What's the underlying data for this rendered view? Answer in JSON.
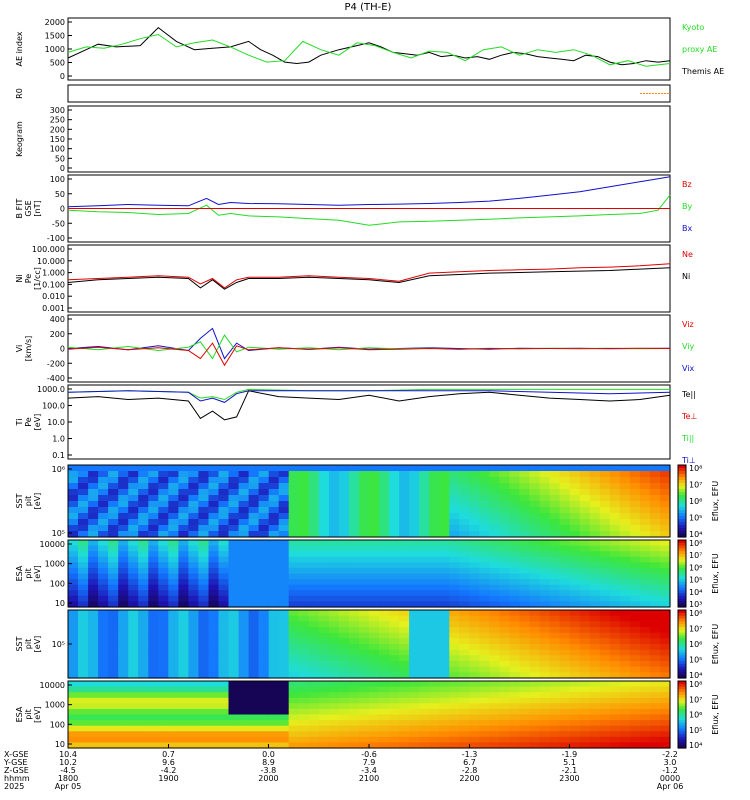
{
  "title": "P4 (TH-E)",
  "colors": {
    "black": "#000000",
    "red": "#e00000",
    "green": "#22dd22",
    "blue": "#1010cc",
    "orange": "#ff8800"
  },
  "chart_data": [
    {
      "id": "ae",
      "type": "line",
      "ylabel": "AE index",
      "yticks": [
        "2000",
        "1500",
        "1000",
        "500",
        "0"
      ],
      "legend": [
        {
          "label": "Kyoto",
          "color": "green"
        },
        {
          "label": "proxy AE",
          "color": "green"
        },
        {
          "label": "Themis AE",
          "color": "black"
        }
      ],
      "ylim": [
        -200,
        2050
      ],
      "series": [
        {
          "name": "Themis AE",
          "color": "black",
          "x": [
            0,
            3,
            5,
            8,
            12,
            15,
            18,
            21,
            24,
            27,
            30,
            32,
            34,
            36,
            38,
            40,
            42,
            45,
            48,
            50,
            52,
            54,
            56,
            58,
            60,
            62,
            64,
            66,
            68,
            70,
            72,
            74,
            76,
            78,
            80,
            82,
            84,
            86,
            88,
            90,
            92,
            94,
            96,
            98,
            100
          ],
          "y": [
            600,
            900,
            1100,
            1000,
            1050,
            1700,
            1200,
            900,
            950,
            1000,
            1200,
            900,
            700,
            450,
            400,
            450,
            700,
            900,
            1050,
            1150,
            1000,
            800,
            750,
            700,
            800,
            650,
            700,
            600,
            650,
            550,
            700,
            800,
            750,
            650,
            600,
            550,
            500,
            700,
            650,
            450,
            350,
            400,
            500,
            450,
            500
          ]
        },
        {
          "name": "Kyoto proxy AE",
          "color": "green",
          "x": [
            0,
            3,
            6,
            9,
            12,
            15,
            18,
            21,
            24,
            27,
            30,
            33,
            36,
            39,
            42,
            45,
            48,
            51,
            54,
            57,
            60,
            63,
            66,
            69,
            72,
            75,
            78,
            81,
            84,
            87,
            90,
            93,
            96,
            100
          ],
          "y": [
            800,
            1000,
            950,
            1100,
            1300,
            1450,
            1000,
            1150,
            1250,
            1000,
            700,
            450,
            500,
            1200,
            900,
            700,
            1150,
            1050,
            800,
            600,
            850,
            800,
            500,
            900,
            1000,
            700,
            900,
            800,
            900,
            700,
            350,
            500,
            300,
            400
          ]
        }
      ]
    },
    {
      "id": "r0",
      "type": "line",
      "ylabel": "R0",
      "series": [
        {
          "name": "R0",
          "color": "orange",
          "x": [
            95,
            100
          ],
          "y": [
            0.5,
            0.5
          ]
        }
      ]
    },
    {
      "id": "keogram",
      "type": "heatmap",
      "ylabel": "Keogram",
      "yticks": [
        "300",
        "250",
        "200",
        "150",
        "100",
        "50",
        "0"
      ],
      "values": []
    },
    {
      "id": "bfield",
      "type": "line",
      "ylabel": [
        "B FIT",
        "GSE",
        "[nT]"
      ],
      "yticks": [
        "100",
        "50",
        "0",
        "-50",
        "-100"
      ],
      "ylim": [
        -100,
        100
      ],
      "legend": [
        {
          "label": "Bz",
          "color": "red"
        },
        {
          "label": "By",
          "color": "green"
        },
        {
          "label": "Bx",
          "color": "blue"
        }
      ],
      "series": [
        {
          "name": "Bx",
          "color": "blue",
          "x": [
            0,
            5,
            10,
            15,
            20,
            23,
            25,
            27,
            30,
            35,
            40,
            45,
            50,
            55,
            60,
            65,
            70,
            75,
            80,
            85,
            90,
            95,
            100
          ],
          "y": [
            5,
            8,
            12,
            10,
            8,
            30,
            12,
            18,
            15,
            14,
            12,
            10,
            12,
            13,
            15,
            18,
            22,
            30,
            40,
            50,
            65,
            80,
            95
          ]
        },
        {
          "name": "By",
          "color": "green",
          "x": [
            0,
            5,
            10,
            15,
            20,
            23,
            25,
            27,
            30,
            35,
            40,
            45,
            50,
            55,
            60,
            65,
            70,
            75,
            80,
            85,
            90,
            95,
            98,
            100
          ],
          "y": [
            -5,
            -10,
            -12,
            -18,
            -15,
            10,
            -20,
            -15,
            -22,
            -25,
            -30,
            -35,
            -50,
            -40,
            -38,
            -35,
            -32,
            -28,
            -25,
            -22,
            -18,
            -15,
            -5,
            40
          ]
        },
        {
          "name": "Bz",
          "color": "red",
          "x": [
            0,
            100
          ],
          "y": [
            0,
            0
          ]
        }
      ]
    },
    {
      "id": "density",
      "type": "line",
      "ylabel": [
        "Ni",
        "Pe",
        "[1/cc]"
      ],
      "yticks": [
        "100.000",
        "10.000",
        "1.000",
        "0.100",
        "0.010",
        "0.001"
      ],
      "ylim": [
        -3,
        2
      ],
      "yscale": "log",
      "legend": [
        {
          "label": "Ne",
          "color": "red"
        },
        {
          "label": "Ni",
          "color": "black"
        }
      ],
      "series": [
        {
          "name": "Ni",
          "color": "black",
          "x": [
            0,
            5,
            10,
            15,
            20,
            22,
            24,
            26,
            28,
            30,
            35,
            40,
            45,
            50,
            55,
            60,
            65,
            70,
            75,
            80,
            85,
            90,
            95,
            100
          ],
          "y": [
            -0.8,
            -0.6,
            -0.5,
            -0.4,
            -0.5,
            -1.2,
            -0.6,
            -1.3,
            -0.8,
            -0.5,
            -0.5,
            -0.4,
            -0.5,
            -0.6,
            -0.8,
            -0.3,
            -0.2,
            -0.1,
            -0.05,
            0,
            0.05,
            0.1,
            0.2,
            0.3
          ]
        },
        {
          "name": "Ne",
          "color": "red",
          "x": [
            0,
            5,
            10,
            15,
            20,
            22,
            24,
            26,
            28,
            30,
            35,
            40,
            45,
            50,
            55,
            60,
            65,
            70,
            75,
            80,
            85,
            90,
            95,
            100
          ],
          "y": [
            -0.6,
            -0.5,
            -0.4,
            -0.3,
            -0.4,
            -0.9,
            -0.5,
            -1.2,
            -0.6,
            -0.4,
            -0.4,
            -0.3,
            -0.4,
            -0.5,
            -0.7,
            -0.1,
            0,
            0.1,
            0.15,
            0.2,
            0.3,
            0.35,
            0.45,
            0.6
          ]
        }
      ]
    },
    {
      "id": "velocity",
      "type": "line",
      "ylabel": [
        "Vi",
        "[km/s]"
      ],
      "yticks": [
        "400",
        "200",
        "0",
        "-200",
        "-400"
      ],
      "ylim": [
        -500,
        500
      ],
      "legend": [
        {
          "label": "Viz",
          "color": "red"
        },
        {
          "label": "Viy",
          "color": "green"
        },
        {
          "label": "Vix",
          "color": "blue"
        }
      ],
      "series": [
        {
          "name": "Vix",
          "color": "blue",
          "x": [
            0,
            5,
            10,
            15,
            20,
            22,
            24,
            26,
            28,
            30,
            35,
            40,
            45,
            50,
            55,
            60,
            65,
            70,
            75,
            80,
            85,
            90,
            95,
            100
          ],
          "y": [
            0,
            30,
            -20,
            40,
            -30,
            150,
            300,
            -150,
            80,
            -30,
            10,
            -10,
            20,
            -10,
            0,
            10,
            0,
            -10,
            5,
            0,
            5,
            -5,
            0,
            5
          ]
        },
        {
          "name": "Viy",
          "color": "green",
          "x": [
            0,
            5,
            10,
            15,
            20,
            22,
            24,
            26,
            28,
            30,
            35,
            40,
            45,
            50,
            55,
            60,
            65,
            70,
            75,
            80,
            85,
            90,
            95,
            100
          ],
          "y": [
            20,
            -20,
            30,
            -30,
            20,
            100,
            -150,
            200,
            -50,
            20,
            -10,
            10,
            -20,
            10,
            -5,
            5,
            -10,
            5,
            -5,
            5,
            0,
            5,
            -5,
            0
          ]
        },
        {
          "name": "Viz",
          "color": "red",
          "x": [
            0,
            5,
            10,
            15,
            20,
            22,
            24,
            26,
            28,
            30,
            35,
            40,
            45,
            50,
            55,
            60,
            65,
            70,
            75,
            80,
            85,
            90,
            95,
            100
          ],
          "y": [
            -10,
            20,
            -20,
            10,
            -30,
            -150,
            80,
            -250,
            40,
            -20,
            10,
            -15,
            10,
            -20,
            -10,
            0,
            -10,
            0,
            -5,
            0,
            -5,
            0,
            5,
            0
          ]
        }
      ]
    },
    {
      "id": "temperature",
      "type": "line",
      "ylabel": [
        "Ti",
        "Pe",
        "[eV]"
      ],
      "yticks": [
        "1000.0",
        "100.0",
        "10.0",
        "1.0",
        "0.1"
      ],
      "ylim": [
        -1.3,
        3.8
      ],
      "yscale": "log",
      "legend": [
        {
          "label": "Te||",
          "color": "black"
        },
        {
          "label": "Te⊥",
          "color": "red"
        },
        {
          "label": "Ti||",
          "color": "green"
        },
        {
          "label": "Ti⊥",
          "color": "blue"
        }
      ],
      "series": [
        {
          "name": "Ti||",
          "color": "green",
          "x": [
            0,
            10,
            20,
            22,
            24,
            26,
            28,
            30,
            40,
            50,
            60,
            70,
            80,
            90,
            100
          ],
          "y": [
            3.3,
            3.4,
            3.3,
            2.9,
            3.0,
            2.8,
            3.3,
            3.5,
            3.4,
            3.4,
            3.5,
            3.5,
            3.5,
            3.5,
            3.5
          ]
        },
        {
          "name": "Ti⊥",
          "color": "blue",
          "x": [
            0,
            10,
            20,
            22,
            24,
            26,
            28,
            30,
            40,
            50,
            60,
            70,
            80,
            90,
            100
          ],
          "y": [
            3.3,
            3.4,
            3.3,
            2.7,
            2.9,
            2.6,
            3.2,
            3.4,
            3.4,
            3.4,
            3.4,
            3.4,
            3.3,
            3.2,
            3.3
          ]
        },
        {
          "name": "Te||",
          "color": "black",
          "x": [
            0,
            5,
            10,
            15,
            20,
            22,
            24,
            26,
            28,
            30,
            35,
            40,
            45,
            50,
            55,
            60,
            65,
            70,
            75,
            80,
            85,
            90,
            95,
            100
          ],
          "y": [
            2.9,
            3.0,
            2.8,
            2.9,
            2.7,
            1.5,
            2.0,
            1.4,
            1.6,
            3.4,
            3.0,
            2.9,
            2.8,
            3.1,
            2.7,
            3.0,
            3.2,
            3.3,
            3.1,
            2.9,
            2.8,
            2.7,
            2.8,
            3.1
          ]
        }
      ]
    },
    {
      "id": "sst_eflux_a",
      "type": "heatmap",
      "ylabel": [
        "SST",
        "pit",
        "[eV]"
      ],
      "yticks": [
        "10⁶",
        "10⁵"
      ],
      "colorbar": {
        "label": "Eflux, EFU",
        "ticks": [
          "10⁸",
          "10⁷",
          "10⁶",
          "10⁵",
          "10⁴"
        ]
      }
    },
    {
      "id": "esa_eflux_a",
      "type": "heatmap",
      "ylabel": [
        "ESA",
        "pit",
        "[eV]"
      ],
      "yticks": [
        "10000",
        "1000",
        "100",
        "10"
      ],
      "colorbar": {
        "label": "Eflux, EFU",
        "ticks": [
          "10⁸",
          "10⁷",
          "10⁶",
          "10⁵",
          "10⁴",
          "10³"
        ]
      }
    },
    {
      "id": "sst_eflux_b",
      "type": "heatmap",
      "ylabel": [
        "SST",
        "pit",
        "[eV]"
      ],
      "yticks": [
        "10⁵"
      ],
      "colorbar": {
        "label": "Eflux, EFU",
        "ticks": [
          "10⁸",
          "10⁷",
          "10⁶",
          "10⁵",
          "10⁴"
        ]
      }
    },
    {
      "id": "esa_eflux_b",
      "type": "heatmap",
      "ylabel": [
        "ESA",
        "pit",
        "[eV]"
      ],
      "yticks": [
        "10000",
        "1000",
        "100",
        "10"
      ],
      "colorbar": {
        "label": "Eflux, EFU",
        "ticks": [
          "10⁸",
          "10⁷",
          "10⁶",
          "10⁵",
          "10⁴"
        ]
      }
    }
  ],
  "xaxis": {
    "row_labels": [
      "X-GSE",
      "Y-GSE",
      "Z-GSE",
      "hhmm",
      "2025"
    ],
    "columns": [
      {
        "x": 0,
        "vals": [
          "10.4",
          "10.2",
          "-4.5",
          "1800",
          "Apr 05"
        ]
      },
      {
        "x": 16.7,
        "vals": [
          "0.7",
          "9.6",
          "-4.2",
          "1900",
          ""
        ]
      },
      {
        "x": 33.3,
        "vals": [
          "0.0",
          "8.9",
          "-3.8",
          "2000",
          ""
        ]
      },
      {
        "x": 50,
        "vals": [
          "-0.6",
          "7.9",
          "-3.4",
          "2100",
          ""
        ]
      },
      {
        "x": 66.7,
        "vals": [
          "-1.3",
          "6.7",
          "-2.8",
          "2200",
          ""
        ]
      },
      {
        "x": 83.3,
        "vals": [
          "-1.9",
          "5.1",
          "-2.1",
          "2300",
          ""
        ]
      },
      {
        "x": 100,
        "vals": [
          "-2.2",
          "3.0",
          "-1.2",
          "0000",
          "Apr 06"
        ]
      }
    ]
  }
}
